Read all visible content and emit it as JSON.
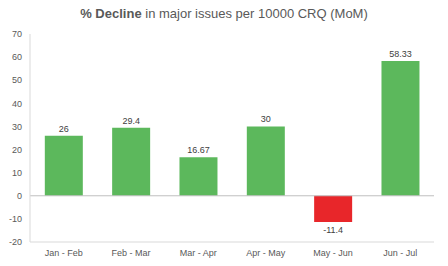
{
  "chart_data": {
    "type": "bar",
    "title": "% Decline in major issues per 10000 CRQ (MoM)",
    "categories": [
      "Jan - Feb",
      "Feb - Mar",
      "Mar - Apr",
      "Apr - May",
      "May - Jun",
      "Jun - Jul"
    ],
    "values": [
      26,
      29.4,
      16.67,
      30,
      -11.4,
      58.33
    ],
    "colors": [
      "#5cb85c",
      "#5cb85c",
      "#5cb85c",
      "#5cb85c",
      "#e8262a",
      "#5cb85c"
    ],
    "ylim": [
      -20,
      70
    ],
    "yticks": [
      -20,
      -10,
      0,
      10,
      20,
      30,
      40,
      50,
      60,
      70
    ],
    "grid": false,
    "data_labels": true
  }
}
